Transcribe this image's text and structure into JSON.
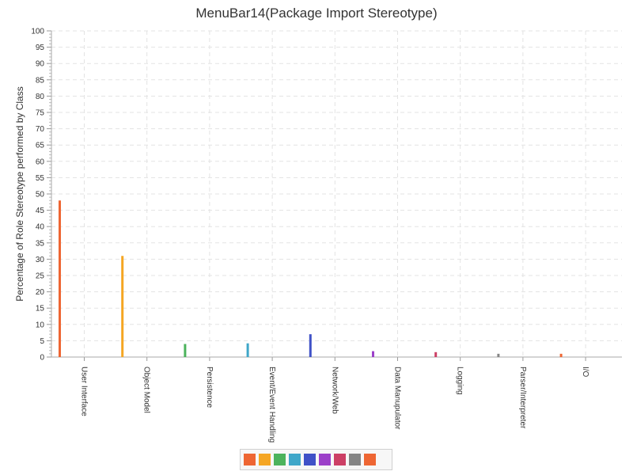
{
  "chart_data": {
    "type": "bar",
    "title": "MenuBar14(Package Import Stereotype)",
    "xlabel": "",
    "ylabel": "Percentage of Role Stereotype performed by Class",
    "ylim": [
      0,
      100
    ],
    "ytick_step": 5,
    "grid": true,
    "categories": [
      "User Interface",
      "Object Model",
      "Persistence",
      "Event/Event Handling",
      "Network/Web",
      "Data Manupulator",
      "Logging",
      "Parser/Interpreter",
      "I/O"
    ],
    "values": [
      48,
      31,
      4,
      4.2,
      7,
      1.8,
      1.5,
      1,
      1
    ],
    "colors": [
      "#ee6633",
      "#f5a623",
      "#4cb35c",
      "#3fa7c9",
      "#3f51c7",
      "#9c40c9",
      "#cc3f65",
      "#858585",
      "#ee6633"
    ],
    "legend": {
      "position": "bottom",
      "colors": [
        "#ee6633",
        "#f5a623",
        "#4cb35c",
        "#3fa7c9",
        "#3f51c7",
        "#9c40c9",
        "#cc3f65",
        "#858585",
        "#ee6633"
      ]
    }
  }
}
